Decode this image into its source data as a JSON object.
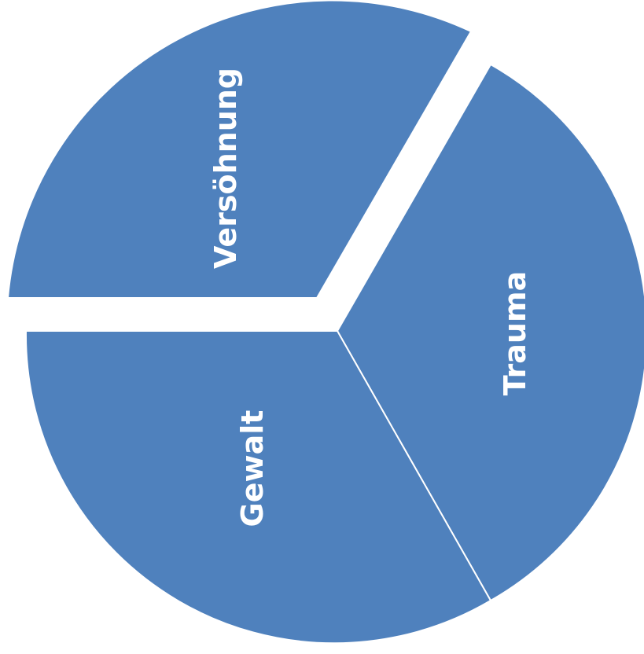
{
  "diagram": {
    "fill_color": "#4f81bd",
    "segments": [
      {
        "id": "versoehnung",
        "label": "Versöhnung",
        "exploded": true
      },
      {
        "id": "trauma",
        "label": "Trauma",
        "exploded": false
      },
      {
        "id": "gewalt",
        "label": "Gewalt",
        "exploded": false
      }
    ]
  }
}
